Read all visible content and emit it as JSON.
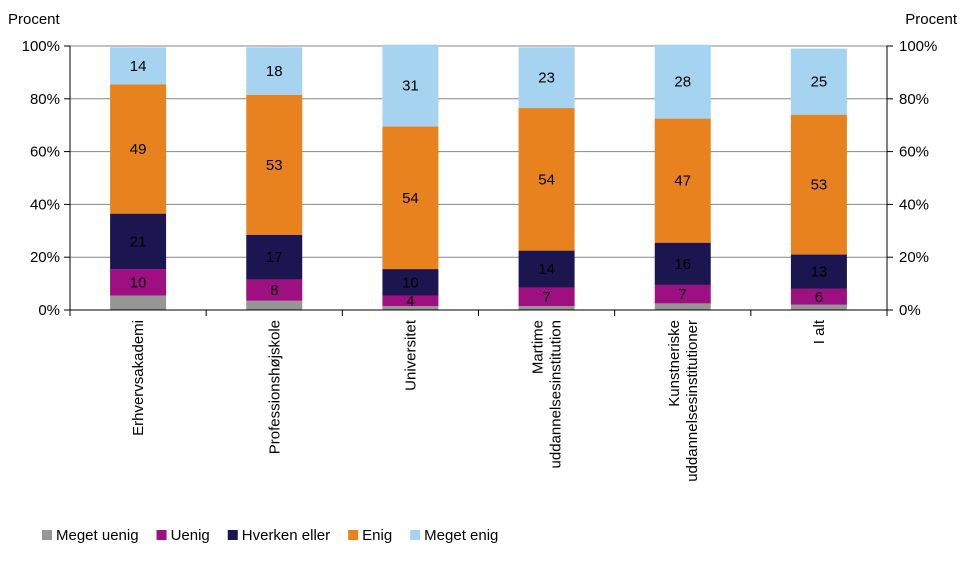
{
  "chart_data": {
    "type": "bar",
    "stacked": true,
    "y_unit_left": "Procent",
    "y_unit_right": "Procent",
    "ylim": [
      0,
      100
    ],
    "yticks": [
      "0%",
      "20%",
      "40%",
      "60%",
      "80%",
      "100%"
    ],
    "categories": [
      [
        "Erhvervsakademi"
      ],
      [
        "Professionshøjskole"
      ],
      [
        "Universitet"
      ],
      [
        "Martime",
        "uddannelsesinstitution"
      ],
      [
        "Kunstneriske",
        "uddannelsesinstitutioner"
      ],
      [
        "I alt"
      ]
    ],
    "series": [
      {
        "name": "Meget uenig",
        "color": "#969696",
        "values": [
          5.5,
          3.5,
          1.5,
          1.5,
          2.5,
          2.0
        ],
        "labels": [
          "",
          "",
          "",
          "",
          "",
          ""
        ]
      },
      {
        "name": "Uenig",
        "color": "#9e0f82",
        "values": [
          10,
          8,
          4,
          7,
          7,
          6
        ],
        "labels": [
          "10",
          "8",
          "4",
          "7",
          "7",
          "6"
        ]
      },
      {
        "name": "Hverken eller",
        "color": "#1b1650",
        "values": [
          21,
          17,
          10,
          14,
          16,
          13
        ],
        "labels": [
          "21",
          "17",
          "10",
          "14",
          "16",
          "13"
        ]
      },
      {
        "name": "Enig",
        "color": "#e8821e",
        "values": [
          49,
          53,
          54,
          54,
          47,
          53
        ],
        "labels": [
          "49",
          "53",
          "54",
          "54",
          "47",
          "53"
        ]
      },
      {
        "name": "Meget enig",
        "color": "#a6d3ef",
        "values": [
          14,
          18,
          31,
          23,
          28,
          25
        ],
        "labels": [
          "14",
          "18",
          "31",
          "23",
          "28",
          "25"
        ]
      }
    ],
    "legend_position": "bottom-left",
    "grid": true
  }
}
